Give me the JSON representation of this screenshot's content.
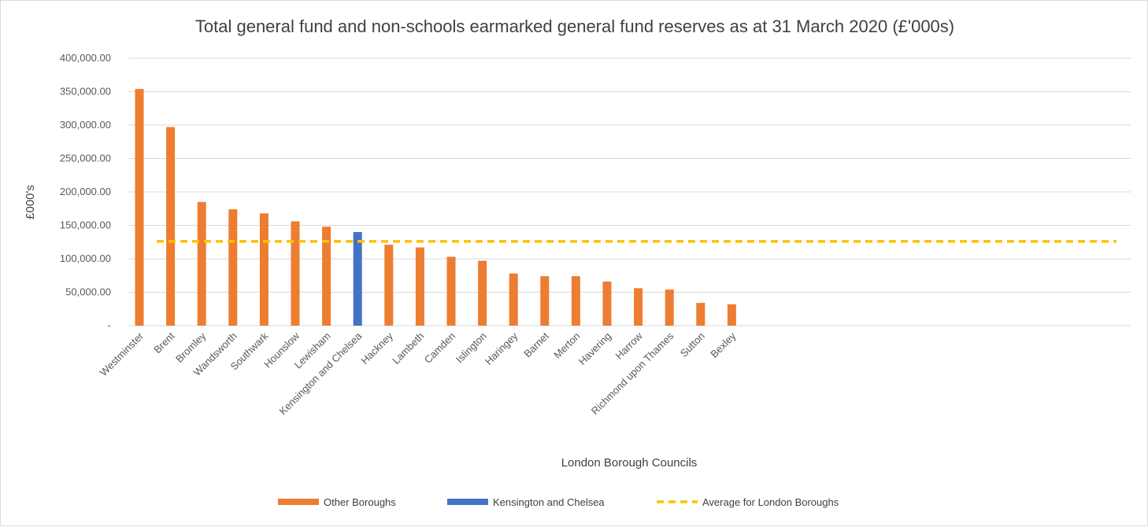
{
  "chart_data": {
    "type": "bar",
    "title": "Total general fund and non-schools earmarked general fund reserves as at 31 March 2020 (£'000s)",
    "xlabel": "London Borough Councils",
    "ylabel": "£000's",
    "ylim": [
      0,
      400000
    ],
    "yticks": [
      {
        "value": 0,
        "label": "-"
      },
      {
        "value": 50000,
        "label": "50,000.00"
      },
      {
        "value": 100000,
        "label": "100,000.00"
      },
      {
        "value": 150000,
        "label": "150,000.00"
      },
      {
        "value": 200000,
        "label": "200,000.00"
      },
      {
        "value": 250000,
        "label": "250,000.00"
      },
      {
        "value": 300000,
        "label": "300,000.00"
      },
      {
        "value": 350000,
        "label": "350,000.00"
      },
      {
        "value": 400000,
        "label": "400,000.00"
      }
    ],
    "grid": true,
    "legend_position": "bottom",
    "categories": [
      "Westminster",
      "Brent",
      "Bromley",
      "Wandsworth",
      "Southwark",
      "Hounslow",
      "Lewisham",
      "Kensington and Chelsea",
      "Hackney",
      "Lambeth",
      "Camden",
      "Islington",
      "Haringey",
      "Barnet",
      "Merton",
      "Havering",
      "Harrow",
      "Richmond upon Thames",
      "Sutton",
      "Bexley"
    ],
    "series": [
      {
        "name": "Other Boroughs",
        "color": "#ed7d31",
        "values": [
          354000,
          297000,
          185000,
          174000,
          168000,
          156000,
          148000,
          null,
          121000,
          117000,
          103000,
          97000,
          78000,
          74000,
          74000,
          66000,
          56000,
          54000,
          34000,
          32000
        ]
      },
      {
        "name": "Kensington and Chelsea",
        "color": "#4472c4",
        "values": [
          null,
          null,
          null,
          null,
          null,
          null,
          null,
          140000,
          null,
          null,
          null,
          null,
          null,
          null,
          null,
          null,
          null,
          null,
          null,
          null
        ]
      },
      {
        "name": "Average for London Boroughs",
        "type": "line",
        "style": "dashed",
        "color": "#ffc000",
        "value": 126000
      }
    ]
  }
}
